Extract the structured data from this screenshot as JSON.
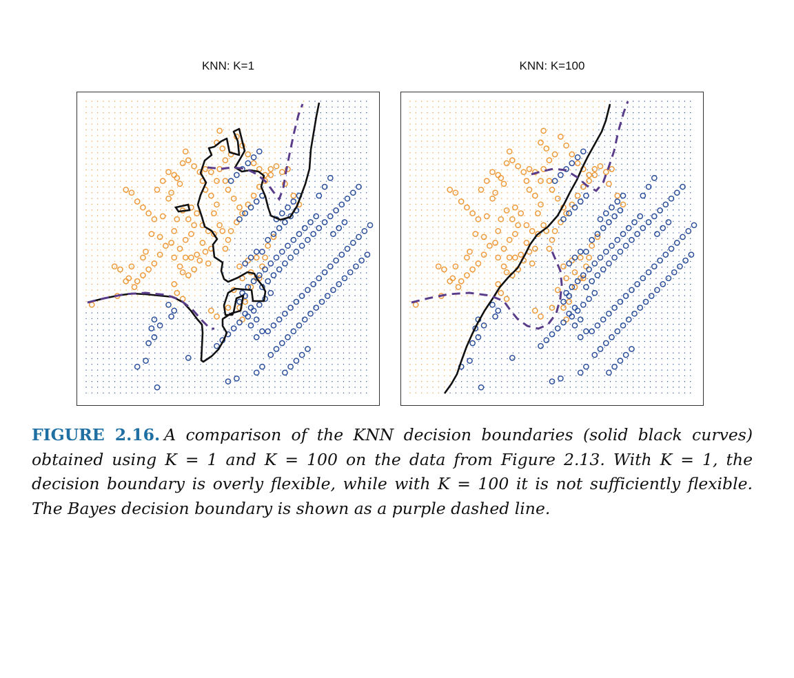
{
  "figure": {
    "label": "FIGURE 2.16.",
    "caption": "A comparison of the KNN decision boundaries (solid black curves) obtained using K = 1 and K = 100 on the data from Figure 2.13. With K = 1, the decision boundary is overly flexible, while with K = 100 it is not sufficiently flexible. The Bayes decision boundary is shown as a purple dashed line."
  },
  "colors": {
    "orange": "#ee9a3a",
    "blue": "#2b4f9a",
    "knn_boundary": "#111111",
    "bayes_boundary": "#5a3d8a"
  },
  "panels": [
    {
      "title": "KNN: K=1"
    },
    {
      "title": "KNN: K=100"
    }
  ],
  "chart_data": {
    "type": "scatter",
    "series": [
      {
        "name": "orange",
        "points": [
          [
            2,
            31
          ],
          [
            11,
            34
          ],
          [
            14,
            39
          ],
          [
            15,
            40
          ],
          [
            12,
            43
          ],
          [
            10,
            44
          ],
          [
            16,
            44
          ],
          [
            20,
            47
          ],
          [
            21,
            49
          ],
          [
            23,
            55
          ],
          [
            26,
            54
          ],
          [
            27,
            61
          ],
          [
            29,
            67
          ],
          [
            30,
            69
          ],
          [
            33,
            72
          ],
          [
            32,
            74
          ],
          [
            34,
            79
          ],
          [
            36,
            80
          ],
          [
            35,
            83
          ],
          [
            38,
            78
          ],
          [
            40,
            76
          ],
          [
            41,
            73
          ],
          [
            42,
            70
          ],
          [
            44,
            68
          ],
          [
            46,
            65
          ],
          [
            45,
            62
          ],
          [
            47,
            58
          ],
          [
            48,
            56
          ],
          [
            50,
            53
          ],
          [
            49,
            50
          ],
          [
            44,
            50
          ],
          [
            43,
            45
          ],
          [
            40,
            46
          ],
          [
            38,
            43
          ],
          [
            36,
            41
          ],
          [
            34,
            42
          ],
          [
            33,
            44
          ],
          [
            31,
            47
          ],
          [
            30,
            52
          ],
          [
            28,
            51
          ],
          [
            26,
            48
          ],
          [
            24,
            45
          ],
          [
            22,
            43
          ],
          [
            20,
            41
          ],
          [
            18,
            39
          ],
          [
            17,
            37
          ],
          [
            24,
            60
          ],
          [
            22,
            62
          ],
          [
            20,
            64
          ],
          [
            18,
            66
          ],
          [
            16,
            69
          ],
          [
            14,
            70
          ],
          [
            25,
            70
          ],
          [
            27,
            73
          ],
          [
            29,
            76
          ],
          [
            31,
            75
          ],
          [
            37,
            64
          ],
          [
            39,
            62
          ],
          [
            41,
            58
          ],
          [
            43,
            56
          ],
          [
            45,
            55
          ],
          [
            41,
            52
          ],
          [
            42,
            49
          ],
          [
            39,
            48
          ],
          [
            37,
            47
          ],
          [
            35,
            47
          ],
          [
            33,
            50
          ],
          [
            31,
            56
          ],
          [
            32,
            60
          ],
          [
            34,
            63
          ],
          [
            36,
            60
          ],
          [
            38,
            58
          ],
          [
            37,
            55
          ],
          [
            35,
            53
          ],
          [
            31,
            38
          ],
          [
            32,
            35
          ],
          [
            34,
            33
          ],
          [
            44,
            29
          ],
          [
            46,
            27
          ],
          [
            50,
            30
          ],
          [
            52,
            36
          ],
          [
            55,
            40
          ],
          [
            58,
            42
          ],
          [
            54,
            44
          ],
          [
            57,
            46
          ],
          [
            60,
            47
          ],
          [
            62,
            44
          ],
          [
            60,
            40
          ],
          [
            58,
            37
          ],
          [
            56,
            32
          ],
          [
            54,
            30
          ],
          [
            55,
            26
          ],
          [
            61,
            40
          ],
          [
            63,
            47
          ],
          [
            64,
            51
          ],
          [
            66,
            54
          ],
          [
            51,
            56
          ],
          [
            53,
            59
          ],
          [
            55,
            62
          ],
          [
            57,
            65
          ],
          [
            59,
            68
          ],
          [
            61,
            71
          ],
          [
            63,
            73
          ],
          [
            65,
            75
          ],
          [
            49,
            73
          ],
          [
            50,
            70
          ],
          [
            52,
            67
          ],
          [
            54,
            64
          ],
          [
            46,
            73
          ],
          [
            44,
            76
          ],
          [
            42,
            77
          ],
          [
            47,
            77
          ],
          [
            49,
            80
          ],
          [
            51,
            82
          ],
          [
            48,
            84
          ],
          [
            46,
            86
          ],
          [
            47,
            90
          ],
          [
            53,
            88
          ],
          [
            55,
            85
          ],
          [
            57,
            82
          ],
          [
            59,
            79
          ],
          [
            61,
            77
          ],
          [
            63,
            75
          ],
          [
            65,
            77
          ],
          [
            67,
            78
          ],
          [
            69,
            76
          ],
          [
            71,
            77
          ],
          [
            70,
            72
          ],
          [
            73,
            68
          ],
          [
            75,
            65
          ]
        ]
      },
      {
        "name": "blue",
        "points": [
          [
            18,
            10
          ],
          [
            21,
            12
          ],
          [
            22,
            18
          ],
          [
            24,
            20
          ],
          [
            23,
            23
          ],
          [
            26,
            24
          ],
          [
            24,
            26
          ],
          [
            30,
            27
          ],
          [
            31,
            29
          ],
          [
            29,
            31
          ],
          [
            25,
            3
          ],
          [
            50,
            5
          ],
          [
            53,
            6
          ],
          [
            36,
            13
          ],
          [
            46,
            17
          ],
          [
            48,
            19
          ],
          [
            50,
            21
          ],
          [
            52,
            23
          ],
          [
            54,
            25
          ],
          [
            57,
            27
          ],
          [
            59,
            29
          ],
          [
            61,
            31
          ],
          [
            63,
            33
          ],
          [
            65,
            35
          ],
          [
            62,
            37
          ],
          [
            64,
            39
          ],
          [
            66,
            41
          ],
          [
            68,
            43
          ],
          [
            70,
            45
          ],
          [
            72,
            47
          ],
          [
            74,
            49
          ],
          [
            76,
            51
          ],
          [
            78,
            53
          ],
          [
            67,
            60
          ],
          [
            69,
            62
          ],
          [
            71,
            64
          ],
          [
            73,
            66
          ],
          [
            75,
            68
          ],
          [
            54,
            60
          ],
          [
            56,
            62
          ],
          [
            58,
            64
          ],
          [
            60,
            66
          ],
          [
            62,
            68
          ],
          [
            51,
            73
          ],
          [
            53,
            75
          ],
          [
            55,
            77
          ],
          [
            57,
            79
          ],
          [
            59,
            81
          ],
          [
            61,
            83
          ],
          [
            55,
            35
          ],
          [
            57,
            37
          ],
          [
            59,
            39
          ],
          [
            61,
            41
          ],
          [
            63,
            43
          ],
          [
            65,
            45
          ],
          [
            62,
            49
          ],
          [
            64,
            53
          ],
          [
            66,
            55
          ],
          [
            68,
            57
          ],
          [
            70,
            59
          ],
          [
            72,
            61
          ],
          [
            74,
            63
          ],
          [
            56,
            45
          ],
          [
            58,
            47
          ],
          [
            60,
            49
          ],
          [
            67,
            47
          ],
          [
            69,
            49
          ],
          [
            71,
            51
          ],
          [
            73,
            53
          ],
          [
            75,
            55
          ],
          [
            77,
            57
          ],
          [
            79,
            59
          ],
          [
            81,
            61
          ],
          [
            80,
            55
          ],
          [
            82,
            57
          ],
          [
            84,
            59
          ],
          [
            86,
            61
          ],
          [
            88,
            63
          ],
          [
            90,
            65
          ],
          [
            92,
            67
          ],
          [
            94,
            69
          ],
          [
            96,
            71
          ],
          [
            87,
            55
          ],
          [
            89,
            57
          ],
          [
            91,
            59
          ],
          [
            82,
            68
          ],
          [
            84,
            71
          ],
          [
            86,
            74
          ],
          [
            65,
            14
          ],
          [
            67,
            16
          ],
          [
            69,
            18
          ],
          [
            71,
            20
          ],
          [
            73,
            22
          ],
          [
            75,
            24
          ],
          [
            77,
            26
          ],
          [
            79,
            28
          ],
          [
            81,
            30
          ],
          [
            83,
            32
          ],
          [
            85,
            34
          ],
          [
            87,
            36
          ],
          [
            89,
            38
          ],
          [
            91,
            40
          ],
          [
            93,
            42
          ],
          [
            95,
            44
          ],
          [
            97,
            46
          ],
          [
            99,
            48
          ],
          [
            64,
            22
          ],
          [
            66,
            24
          ],
          [
            68,
            26
          ],
          [
            70,
            28
          ],
          [
            72,
            30
          ],
          [
            74,
            32
          ],
          [
            76,
            34
          ],
          [
            78,
            36
          ],
          [
            80,
            38
          ],
          [
            82,
            40
          ],
          [
            84,
            42
          ],
          [
            86,
            44
          ],
          [
            88,
            46
          ],
          [
            90,
            48
          ],
          [
            92,
            50
          ],
          [
            94,
            52
          ],
          [
            96,
            54
          ],
          [
            98,
            56
          ],
          [
            100,
            58
          ],
          [
            70,
            8
          ],
          [
            72,
            10
          ],
          [
            74,
            12
          ],
          [
            76,
            14
          ],
          [
            78,
            16
          ],
          [
            60,
            20
          ],
          [
            62,
            22
          ],
          [
            58,
            24
          ],
          [
            60,
            26
          ],
          [
            56,
            28
          ],
          [
            58,
            30
          ],
          [
            54,
            32
          ],
          [
            56,
            34
          ],
          [
            60,
            8
          ],
          [
            62,
            10
          ]
        ]
      }
    ],
    "panels": [
      {
        "title": "KNN: K=1"
      },
      {
        "title": "KNN: K=100"
      }
    ]
  }
}
